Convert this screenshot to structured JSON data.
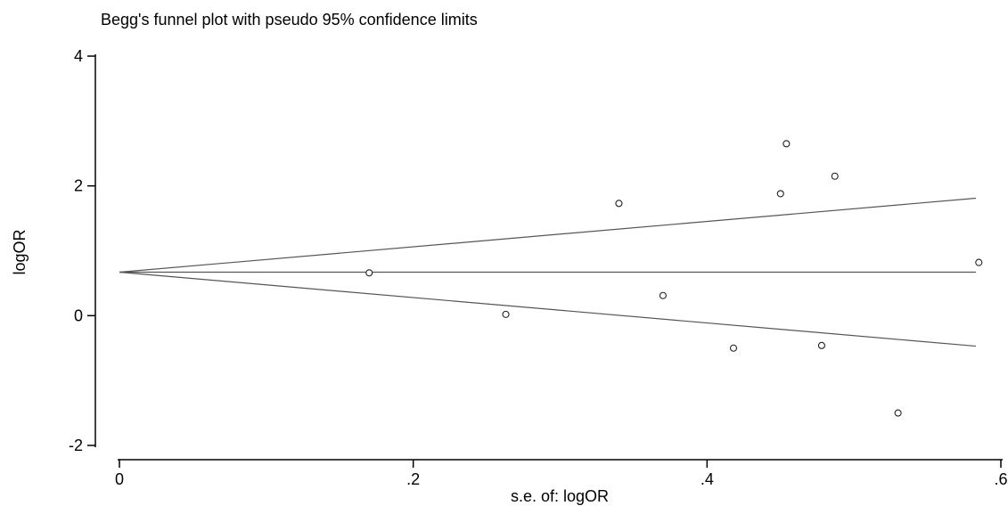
{
  "chart_data": {
    "type": "scatter",
    "title": "Begg's funnel plot with pseudo 95% confidence limits",
    "xlabel": "s.e. of: logOR",
    "ylabel": "logOR",
    "xlim": [
      0,
      0.6
    ],
    "ylim": [
      -2,
      4
    ],
    "x_ticks": [
      {
        "value": 0,
        "label": "0"
      },
      {
        "value": 0.2,
        "label": ".2"
      },
      {
        "value": 0.4,
        "label": ".4"
      },
      {
        "value": 0.6,
        "label": ".6"
      }
    ],
    "y_ticks": [
      {
        "value": -2,
        "label": "-2"
      },
      {
        "value": 0,
        "label": "0"
      },
      {
        "value": 2,
        "label": "2"
      },
      {
        "value": 4,
        "label": "4"
      }
    ],
    "grid": false,
    "legend": "none",
    "points": [
      {
        "x": 0.17,
        "y": 0.66
      },
      {
        "x": 0.263,
        "y": 0.02
      },
      {
        "x": 0.34,
        "y": 1.73
      },
      {
        "x": 0.37,
        "y": 0.31
      },
      {
        "x": 0.418,
        "y": -0.5
      },
      {
        "x": 0.45,
        "y": 1.88
      },
      {
        "x": 0.454,
        "y": 2.65
      },
      {
        "x": 0.478,
        "y": -0.46
      },
      {
        "x": 0.487,
        "y": 2.15
      },
      {
        "x": 0.53,
        "y": -1.5
      },
      {
        "x": 0.585,
        "y": 0.82
      }
    ],
    "pooled_estimate": 0.67,
    "confidence_limits": {
      "x": [
        0,
        0.583
      ],
      "upper": [
        0.67,
        1.81
      ],
      "lower": [
        0.67,
        -0.47
      ]
    }
  }
}
